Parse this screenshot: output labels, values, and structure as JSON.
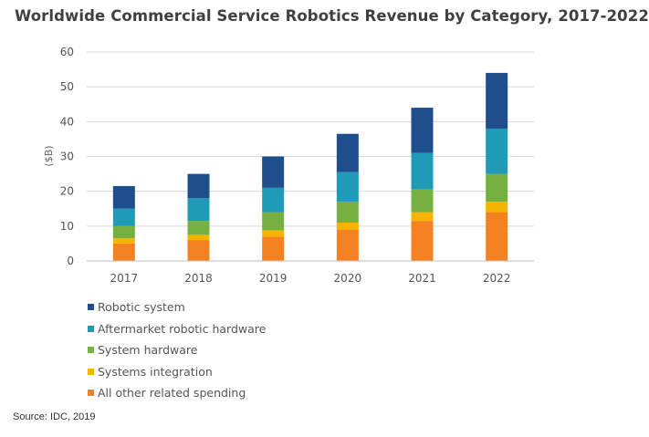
{
  "chart_data": {
    "type": "bar",
    "stacked": true,
    "title": "Worldwide Commercial Service Robotics Revenue by Category, 2017-2022",
    "ylabel": "($B)",
    "xlabel": "",
    "ylim": [
      0,
      60
    ],
    "yticks": [
      0,
      10,
      20,
      30,
      40,
      50,
      60
    ],
    "grid": true,
    "legend_position": "bottom-left",
    "categories": [
      "2017",
      "2018",
      "2019",
      "2020",
      "2021",
      "2022"
    ],
    "series": [
      {
        "name": "All other related spending",
        "color": "#f58220",
        "values": [
          5,
          6,
          7,
          9,
          11.5,
          14
        ]
      },
      {
        "name": "Systems integration",
        "color": "#f5b400",
        "values": [
          1.5,
          1.5,
          1.8,
          2,
          2.5,
          3
        ]
      },
      {
        "name": "System hardware",
        "color": "#76b041",
        "values": [
          3.5,
          4,
          5.2,
          6,
          6.5,
          8
        ]
      },
      {
        "name": "Aftermarket robotic hardware",
        "color": "#1f9bb8",
        "values": [
          5,
          6.5,
          7,
          8.5,
          10.5,
          13
        ]
      },
      {
        "name": "Robotic system",
        "color": "#1f4e8c",
        "values": [
          6.5,
          7,
          9,
          11,
          13,
          16
        ]
      }
    ],
    "legend_order": [
      "Robotic system",
      "Aftermarket robotic hardware",
      "System hardware",
      "Systems integration",
      "All other related spending"
    ]
  },
  "source": "Source: IDC, 2019"
}
